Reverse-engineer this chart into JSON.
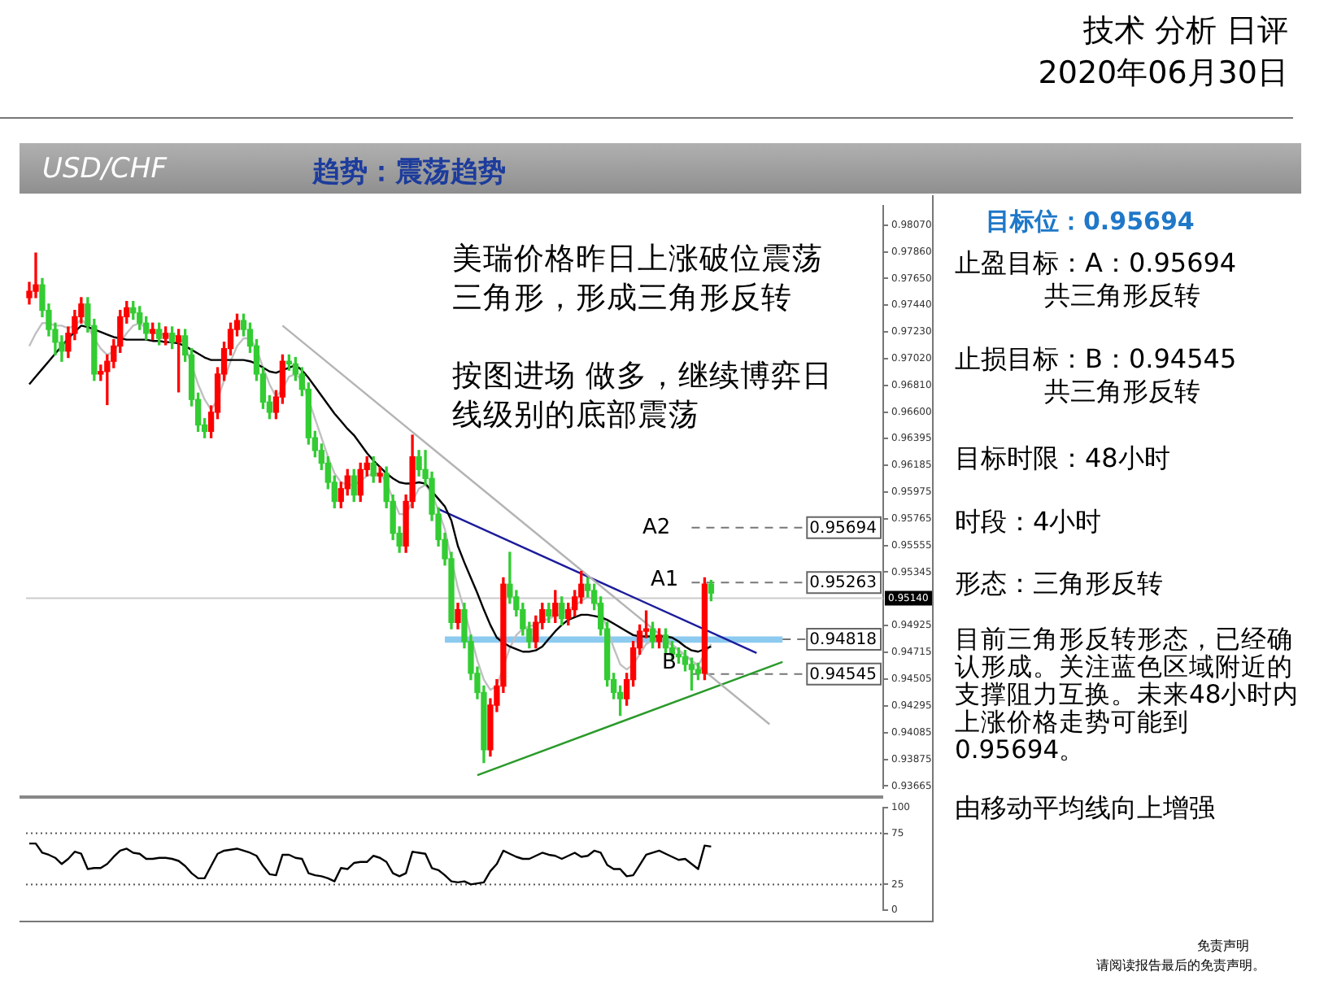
{
  "chart_data": [
    {
      "type": "candlestick",
      "title": "USD/CHF",
      "subtitle": "趋势：震荡趋势",
      "categories": [
        null,
        null,
        null,
        null,
        null,
        null,
        null,
        null,
        null,
        null,
        null,
        null,
        null,
        null,
        null,
        null,
        null,
        null,
        null,
        null,
        null,
        null,
        null,
        null,
        null,
        null,
        null,
        null,
        null,
        null,
        null,
        null,
        null,
        null,
        null,
        null,
        null,
        null,
        null,
        null,
        null,
        null,
        null,
        null,
        null,
        null,
        null,
        null,
        null,
        null,
        null,
        null,
        null,
        null,
        null,
        null,
        null,
        null,
        null,
        null,
        null,
        null,
        null,
        null,
        null,
        null,
        null,
        null,
        null,
        null,
        null,
        null,
        null,
        null,
        null,
        null,
        null,
        null,
        null,
        null,
        null,
        null,
        null,
        null,
        null,
        null,
        null,
        null,
        null,
        null,
        null,
        null,
        null,
        null,
        null,
        null,
        null,
        null,
        null,
        null,
        null,
        null,
        null,
        null,
        null,
        null,
        null,
        null,
        null,
        null,
        null,
        null,
        null,
        null,
        null,
        null,
        null,
        null,
        null,
        null,
        null,
        null,
        null,
        null,
        null,
        null,
        null,
        null,
        null,
        null,
        null,
        null
      ],
      "ohlc": [
        [
          0.975,
          0.9762,
          0.9745,
          0.9755
        ],
        [
          0.9755,
          0.9785,
          0.975,
          0.976
        ],
        [
          0.976,
          0.9765,
          0.9735,
          0.974
        ],
        [
          0.974,
          0.9745,
          0.972,
          0.9725
        ],
        [
          0.9725,
          0.973,
          0.9705,
          0.9715
        ],
        [
          0.9715,
          0.972,
          0.97,
          0.9708
        ],
        [
          0.9708,
          0.9727,
          0.9703,
          0.9722
        ],
        [
          0.9722,
          0.974,
          0.9717,
          0.9735
        ],
        [
          0.9735,
          0.975,
          0.973,
          0.9745
        ],
        [
          0.9745,
          0.975,
          0.9723,
          0.9728
        ],
        [
          0.9728,
          0.9733,
          0.9685,
          0.969
        ],
        [
          0.969,
          0.9697,
          0.9685,
          0.9692
        ],
        [
          0.9692,
          0.9705,
          0.9666,
          0.97
        ],
        [
          0.97,
          0.9717,
          0.9695,
          0.9712
        ],
        [
          0.9712,
          0.974,
          0.9707,
          0.9735
        ],
        [
          0.9735,
          0.9747,
          0.973,
          0.9742
        ],
        [
          0.9742,
          0.9747,
          0.9733,
          0.9738
        ],
        [
          0.9738,
          0.9743,
          0.9725,
          0.973
        ],
        [
          0.973,
          0.9735,
          0.9717,
          0.9722
        ],
        [
          0.9722,
          0.973,
          0.9717,
          0.9725
        ],
        [
          0.9725,
          0.973,
          0.9713,
          0.9718
        ],
        [
          0.9718,
          0.9727,
          0.9713,
          0.9722
        ],
        [
          0.9722,
          0.9727,
          0.971,
          0.9715
        ],
        [
          0.9715,
          0.9725,
          0.9676,
          0.972
        ],
        [
          0.972,
          0.9725,
          0.97,
          0.9705
        ],
        [
          0.9705,
          0.971,
          0.9665,
          0.967
        ],
        [
          0.967,
          0.9675,
          0.9645,
          0.965
        ],
        [
          0.965,
          0.9655,
          0.964,
          0.9645
        ],
        [
          0.9645,
          0.9665,
          0.964,
          0.966
        ],
        [
          0.966,
          0.9695,
          0.9655,
          0.969
        ],
        [
          0.969,
          0.9715,
          0.9685,
          0.971
        ],
        [
          0.971,
          0.973,
          0.9705,
          0.9725
        ],
        [
          0.9725,
          0.9737,
          0.972,
          0.9732
        ],
        [
          0.9732,
          0.9737,
          0.972,
          0.9725
        ],
        [
          0.9725,
          0.973,
          0.9707,
          0.9712
        ],
        [
          0.9712,
          0.9717,
          0.9685,
          0.969
        ],
        [
          0.969,
          0.9695,
          0.9663,
          0.9668
        ],
        [
          0.9668,
          0.9673,
          0.9655,
          0.966
        ],
        [
          0.966,
          0.9677,
          0.9655,
          0.9672
        ],
        [
          0.9672,
          0.9705,
          0.9667,
          0.97
        ],
        [
          0.97,
          0.9705,
          0.9693,
          0.9698
        ],
        [
          0.9698,
          0.9703,
          0.9685,
          0.969
        ],
        [
          0.969,
          0.9695,
          0.9673,
          0.9678
        ],
        [
          0.9678,
          0.9683,
          0.9635,
          0.964
        ],
        [
          0.964,
          0.9645,
          0.9625,
          0.963
        ],
        [
          0.963,
          0.9635,
          0.9615,
          0.962
        ],
        [
          0.962,
          0.9625,
          0.96,
          0.9605
        ],
        [
          0.9605,
          0.961,
          0.9585,
          0.959
        ],
        [
          0.959,
          0.9605,
          0.9585,
          0.96
        ],
        [
          0.96,
          0.9615,
          0.9595,
          0.961
        ],
        [
          0.961,
          0.9615,
          0.959,
          0.9595
        ],
        [
          0.9595,
          0.962,
          0.959,
          0.9615
        ],
        [
          0.9615,
          0.9625,
          0.961,
          0.962
        ],
        [
          0.962,
          0.9625,
          0.9605,
          0.961
        ],
        [
          0.961,
          0.9617,
          0.9605,
          0.9612
        ],
        [
          0.9612,
          0.9617,
          0.9585,
          0.959
        ],
        [
          0.959,
          0.9595,
          0.956,
          0.9565
        ],
        [
          0.9565,
          0.957,
          0.955,
          0.9555
        ],
        [
          0.9555,
          0.9595,
          0.955,
          0.959
        ],
        [
          0.959,
          0.9642,
          0.9585,
          0.9625
        ],
        [
          0.9625,
          0.963,
          0.961,
          0.9615
        ],
        [
          0.9615,
          0.963,
          0.9603,
          0.9608
        ],
        [
          0.9608,
          0.9613,
          0.9575,
          0.958
        ],
        [
          0.958,
          0.9585,
          0.9555,
          0.956
        ],
        [
          0.956,
          0.9565,
          0.954,
          0.9545
        ],
        [
          0.9545,
          0.955,
          0.949,
          0.9495
        ],
        [
          0.9495,
          0.951,
          0.949,
          0.9505
        ],
        [
          0.9505,
          0.951,
          0.9475,
          0.948
        ],
        [
          0.948,
          0.9485,
          0.945,
          0.9455
        ],
        [
          0.9455,
          0.946,
          0.9435,
          0.944
        ],
        [
          0.944,
          0.9445,
          0.9385,
          0.9395
        ],
        [
          0.9395,
          0.9435,
          0.939,
          0.943
        ],
        [
          0.943,
          0.945,
          0.9425,
          0.9445
        ],
        [
          0.9445,
          0.953,
          0.944,
          0.9525
        ],
        [
          0.9525,
          0.955,
          0.951,
          0.9515
        ],
        [
          0.9515,
          0.952,
          0.95,
          0.9505
        ],
        [
          0.9505,
          0.951,
          0.9485,
          0.949
        ],
        [
          0.949,
          0.9495,
          0.9475,
          0.948
        ],
        [
          0.948,
          0.95,
          0.9475,
          0.9495
        ],
        [
          0.9495,
          0.951,
          0.949,
          0.9505
        ],
        [
          0.9505,
          0.951,
          0.9495,
          0.95
        ],
        [
          0.95,
          0.952,
          0.9495,
          0.951
        ],
        [
          0.951,
          0.9515,
          0.9493,
          0.9498
        ],
        [
          0.9498,
          0.951,
          0.9493,
          0.9505
        ],
        [
          0.9505,
          0.952,
          0.95,
          0.9515
        ],
        [
          0.9515,
          0.9535,
          0.951,
          0.9525
        ],
        [
          0.9525,
          0.953,
          0.9515,
          0.952
        ],
        [
          0.952,
          0.9525,
          0.9505,
          0.951
        ],
        [
          0.951,
          0.9515,
          0.9485,
          0.949
        ],
        [
          0.949,
          0.9495,
          0.9445,
          0.945
        ],
        [
          0.945,
          0.9455,
          0.9435,
          0.944
        ],
        [
          0.944,
          0.9445,
          0.9422,
          0.9435
        ],
        [
          0.9435,
          0.9455,
          0.943,
          0.945
        ],
        [
          0.945,
          0.948,
          0.9445,
          0.9475
        ],
        [
          0.9475,
          0.9493,
          0.947,
          0.9488
        ],
        [
          0.9488,
          0.9504,
          0.9483,
          0.949
        ],
        [
          0.949,
          0.9495,
          0.9475,
          0.948
        ],
        [
          0.948,
          0.949,
          0.9475,
          0.9485
        ],
        [
          0.9485,
          0.949,
          0.947,
          0.9475
        ],
        [
          0.9475,
          0.948,
          0.9465,
          0.947
        ],
        [
          0.947,
          0.9475,
          0.9463,
          0.9468
        ],
        [
          0.9468,
          0.9473,
          0.9457,
          0.9462
        ],
        [
          0.9462,
          0.9467,
          0.9442,
          0.9458
        ],
        [
          0.9458,
          0.9463,
          0.945,
          0.9455
        ],
        [
          0.9455,
          0.953,
          0.945,
          0.9525
        ],
        [
          0.9525,
          0.9528,
          0.9512,
          0.9518
        ],
        null,
        null,
        null,
        null,
        null,
        null,
        null,
        null,
        null,
        null,
        null,
        null,
        null,
        null,
        null,
        null,
        null,
        null,
        null,
        null,
        null,
        null,
        null,
        null,
        null,
        null
      ],
      "colors": [
        "#ff0000",
        "#ff0000",
        "#33cc33",
        "#33cc33",
        "#33cc33",
        "#33cc33",
        "#ff0000",
        "#ff0000",
        "#ff0000",
        "#33cc33",
        "#33cc33",
        "#ff0000",
        "#ff0000",
        "#ff0000",
        "#ff0000",
        "#ff0000",
        "#33cc33",
        "#33cc33",
        "#33cc33",
        "#ff0000",
        "#33cc33",
        "#ff0000",
        "#33cc33",
        "#ff0000",
        "#33cc33",
        "#33cc33",
        "#33cc33",
        "#33cc33",
        "#ff0000",
        "#ff0000",
        "#ff0000",
        "#ff0000",
        "#ff0000",
        "#33cc33",
        "#33cc33",
        "#33cc33",
        "#33cc33",
        "#33cc33",
        "#ff0000",
        "#ff0000",
        "#33cc33",
        "#33cc33",
        "#33cc33",
        "#33cc33",
        "#33cc33",
        "#33cc33",
        "#33cc33",
        "#33cc33",
        "#ff0000",
        "#ff0000",
        "#33cc33",
        "#ff0000",
        "#ff0000",
        "#33cc33",
        "#ff0000",
        "#33cc33",
        "#33cc33",
        "#33cc33",
        "#ff0000",
        "#ff0000",
        "#33cc33",
        "#33cc33",
        "#33cc33",
        "#33cc33",
        "#33cc33",
        "#33cc33",
        "#ff0000",
        "#33cc33",
        "#33cc33",
        "#33cc33",
        "#33cc33",
        "#ff0000",
        "#ff0000",
        "#ff0000",
        "#33cc33",
        "#33cc33",
        "#33cc33",
        "#33cc33",
        "#ff0000",
        "#ff0000",
        "#33cc33",
        "#ff0000",
        "#33cc33",
        "#ff0000",
        "#ff0000",
        "#ff0000",
        "#33cc33",
        "#33cc33",
        "#33cc33",
        "#33cc33",
        "#33cc33",
        "#33cc33",
        "#ff0000",
        "#ff0000",
        "#ff0000",
        "#ff0000",
        "#33cc33",
        "#ff0000",
        "#33cc33",
        "#33cc33",
        "#33cc33",
        "#33cc33",
        "#33cc33",
        "#33cc33",
        "#ff0000",
        "#33cc33",
        null,
        null,
        null,
        null,
        null,
        null,
        null,
        null,
        null,
        null,
        null,
        null,
        null,
        null,
        null,
        null,
        null,
        null,
        null,
        null,
        null,
        null,
        null,
        null,
        null,
        null
      ],
      "series": [
        {
          "type": "line",
          "color": "#000000",
          "values": [
            0.9682,
            0.9688,
            0.9694,
            0.97,
            0.9706,
            0.9712,
            0.9718,
            0.9723,
            0.9728,
            0.9727,
            0.9725,
            0.9723,
            0.9721,
            0.9719,
            0.9718,
            0.9717,
            0.9717,
            0.9717,
            0.9717,
            0.9716,
            0.9716,
            0.9715,
            0.9715,
            0.9714,
            0.9712,
            0.9709,
            0.9706,
            0.9703,
            0.9701,
            0.9701,
            0.9701,
            0.9701,
            0.9701,
            0.9701,
            0.97,
            0.9698,
            0.9695,
            0.9692,
            0.9691,
            0.9693,
            0.9695,
            0.9697,
            0.9693,
            0.9687,
            0.968,
            0.9673,
            0.9666,
            0.9659,
            0.9653,
            0.9647,
            0.9642,
            0.9635,
            0.9628,
            0.9622,
            0.9617,
            0.9612,
            0.9608,
            0.9605,
            0.9604,
            0.9604,
            0.9605,
            0.9604,
            0.9598,
            0.9592,
            0.9586,
            0.9575,
            0.9555,
            0.9542,
            0.953,
            0.9518,
            0.9505,
            0.9493,
            0.9483,
            0.9479,
            0.9476,
            0.9474,
            0.9472,
            0.9472,
            0.9473,
            0.9476,
            0.9482,
            0.9488,
            0.9493,
            0.9497,
            0.9499,
            0.9501,
            0.9501,
            0.95,
            0.9499,
            0.9497,
            0.9494,
            0.9491,
            0.9488,
            0.9485,
            0.9484,
            0.9484,
            0.9484,
            0.9484,
            0.9484,
            0.9483,
            0.948,
            0.9476,
            0.9473,
            0.9472,
            0.9474,
            0.9476,
            null,
            null,
            null,
            null,
            null,
            null,
            null,
            null,
            null,
            null,
            null,
            null,
            null,
            null,
            null,
            null,
            null,
            null,
            null,
            null,
            null,
            null,
            null,
            null,
            null,
            null
          ]
        },
        {
          "type": "line",
          "color": "#c0c0c0",
          "values": [
            0.9712,
            0.9722,
            0.973,
            0.973,
            0.9728,
            0.9728,
            0.9726,
            0.9728,
            0.9733,
            0.9728,
            0.9718,
            0.971,
            0.9705,
            0.9708,
            0.9715,
            0.9722,
            0.9728,
            0.973,
            0.9726,
            0.9722,
            0.9722,
            0.972,
            0.972,
            0.972,
            0.9712,
            null,
            0.9682,
            0.967,
            0.9662,
            0.967,
            0.9685,
            0.97,
            0.9712,
            0.9718,
            0.9718,
            0.971,
            0.9695,
            0.9682,
            0.9672,
            0.9678,
            0.9688,
            0.969,
            0.9685,
            0.967,
            0.9655,
            0.964,
            0.9625,
            0.9612,
            0.9605,
            0.9603,
            0.9603,
            0.9606,
            0.961,
            0.9612,
            0.9612,
            0.9605,
            0.9592,
            0.958,
            0.958,
            0.959,
            0.96,
            0.9603,
            0.9596,
            0.9583,
            0.9568,
            null,
            0.9522,
            0.9505,
            0.9485,
            0.9465,
            0.945,
            0.9442,
            0.9445,
            null,
            0.9475,
            0.9485,
            0.949,
            0.9492,
            0.9493,
            0.9496,
            0.9498,
            0.95,
            0.9502,
            0.9505,
            0.9508,
            0.9512,
            0.9515,
            0.9513,
            0.9505,
            0.949,
            0.9475,
            0.9462,
            0.9458,
            0.9462,
            0.947,
            0.9478,
            0.9481,
            0.9482,
            0.948,
            0.9477,
            0.9473,
            0.9469,
            0.9465,
            0.9461,
            0.947,
            0.9478,
            null,
            null,
            null,
            null,
            null,
            null,
            null,
            null,
            null,
            null,
            null,
            null,
            null,
            null,
            null,
            null,
            null,
            null,
            null,
            null,
            null,
            null,
            null,
            null,
            null,
            null
          ]
        },
        {
          "type": "line",
          "color": "#b4b4b4",
          "values": [
            null,
            null,
            null,
            null,
            null,
            null,
            null,
            null,
            null,
            null,
            null,
            null,
            null,
            null,
            null,
            null,
            null,
            null,
            null,
            null,
            null,
            null,
            null,
            null,
            null,
            null,
            null,
            null,
            null,
            null,
            null,
            null,
            null,
            null,
            null,
            null,
            null,
            null,
            null,
            0.9728,
            null,
            null,
            null,
            null,
            null,
            null,
            null,
            null,
            null,
            null,
            null,
            null,
            null,
            null,
            null,
            null,
            null,
            null,
            null,
            null,
            null,
            null,
            null,
            null,
            null,
            null,
            null,
            null,
            null,
            null,
            null,
            null,
            null,
            null,
            null,
            null,
            null,
            null,
            null,
            null,
            null,
            null,
            null,
            null,
            null,
            null,
            null,
            null,
            null,
            null,
            null,
            null,
            null,
            null,
            null,
            null,
            null,
            null,
            null,
            null,
            null,
            null,
            null,
            null,
            null,
            null,
            null,
            null,
            null,
            null,
            null,
            null,
            null,
            null,
            0.9415,
            null,
            null,
            null,
            null,
            null,
            null,
            null,
            null,
            null,
            null,
            null,
            null,
            null,
            null,
            null,
            null,
            null
          ]
        },
        {
          "type": "line",
          "color": "#1c1c9c",
          "values": [
            null,
            null,
            null,
            null,
            null,
            null,
            null,
            null,
            null,
            null,
            null,
            null,
            null,
            null,
            null,
            null,
            null,
            null,
            null,
            null,
            null,
            null,
            null,
            null,
            null,
            null,
            null,
            null,
            null,
            null,
            null,
            null,
            null,
            null,
            null,
            null,
            null,
            null,
            null,
            null,
            null,
            null,
            null,
            null,
            null,
            null,
            null,
            null,
            null,
            null,
            null,
            null,
            null,
            null,
            null,
            null,
            null,
            null,
            null,
            null,
            null,
            null,
            null,
            0.9584,
            null,
            null,
            null,
            null,
            null,
            null,
            null,
            null,
            null,
            null,
            null,
            null,
            null,
            null,
            null,
            null,
            null,
            null,
            null,
            null,
            null,
            null,
            null,
            null,
            null,
            null,
            null,
            null,
            null,
            null,
            null,
            null,
            null,
            null,
            null,
            null,
            null,
            null,
            null,
            null,
            null,
            null,
            null,
            null,
            null,
            null,
            null,
            null,
            0.9471,
            null,
            null,
            null,
            null,
            null,
            null,
            null,
            null,
            null,
            null,
            null,
            null,
            null,
            null,
            null,
            null,
            null,
            null,
            null
          ]
        },
        {
          "type": "line",
          "color": "#2a9a2a",
          "values": [
            null,
            null,
            null,
            null,
            null,
            null,
            null,
            null,
            null,
            null,
            null,
            null,
            null,
            null,
            null,
            null,
            null,
            null,
            null,
            null,
            null,
            null,
            null,
            null,
            null,
            null,
            null,
            null,
            null,
            null,
            null,
            null,
            null,
            null,
            null,
            null,
            null,
            null,
            null,
            null,
            null,
            null,
            null,
            null,
            null,
            null,
            null,
            null,
            null,
            null,
            null,
            null,
            null,
            null,
            null,
            null,
            null,
            null,
            null,
            null,
            null,
            null,
            null,
            null,
            null,
            null,
            null,
            null,
            null,
            0.9375,
            null,
            null,
            null,
            null,
            null,
            null,
            null,
            null,
            null,
            null,
            null,
            null,
            null,
            null,
            null,
            null,
            null,
            null,
            null,
            null,
            null,
            null,
            null,
            null,
            null,
            null,
            null,
            null,
            null,
            null,
            null,
            null,
            null,
            null,
            null,
            null,
            null,
            null,
            null,
            null,
            null,
            null,
            null,
            null,
            null,
            null,
            0.9464,
            null,
            null,
            null,
            null,
            null,
            null,
            null,
            null,
            null,
            null,
            null,
            null,
            null,
            null,
            null
          ]
        }
      ],
      "ylim": [
        0.9365,
        0.9822
      ],
      "yticks": [
        {
          "value": 0.9807,
          "label": "0.98070"
        },
        {
          "value": 0.9786,
          "label": "0.97860"
        },
        {
          "value": 0.9765,
          "label": "0.97650"
        },
        {
          "value": 0.9744,
          "label": "0.97440"
        },
        {
          "value": 0.9723,
          "label": "0.97230"
        },
        {
          "value": 0.9702,
          "label": "0.97020"
        },
        {
          "value": 0.9681,
          "label": "0.96810"
        },
        {
          "value": 0.966,
          "label": "0.96600"
        },
        {
          "value": 0.96395,
          "label": "0.96395"
        },
        {
          "value": 0.96185,
          "label": "0.96185"
        },
        {
          "value": 0.95975,
          "label": "0.95975"
        },
        {
          "value": 0.95765,
          "label": "0.95765"
        },
        {
          "value": 0.95555,
          "label": "0.95555"
        },
        {
          "value": 0.95345,
          "label": "0.95345"
        },
        {
          "value": 0.94925,
          "label": "0.94925"
        },
        {
          "value": 0.94715,
          "label": "0.94715"
        },
        {
          "value": 0.94505,
          "label": "0.94505"
        },
        {
          "value": 0.94295,
          "label": "0.94295"
        },
        {
          "value": 0.94085,
          "label": "0.94085"
        },
        {
          "value": 0.93875,
          "label": "0.93875"
        },
        {
          "value": 0.93665,
          "label": "0.93665"
        }
      ],
      "tick_labels": "y",
      "grid": false,
      "legend": false,
      "marker": "none",
      "ref_lines": [
        {
          "axis": "y",
          "value": 0.9514,
          "label": "0.95140",
          "line_style": "solid",
          "color": "#cccccc"
        },
        {
          "axis": "y",
          "value": 0.95694,
          "label": "0.95694",
          "line_style": "dashed"
        },
        {
          "axis": "y",
          "value": 0.95263,
          "label": "0.95263",
          "line_style": "dashed"
        },
        {
          "axis": "y",
          "value": 0.94818,
          "label": "0.94818",
          "line_style": "dashed"
        },
        {
          "axis": "y",
          "value": 0.94545,
          "label": "0.94545",
          "line_style": "dashed"
        }
      ],
      "bands": [
        {
          "axis": "y",
          "from": 0.9479,
          "to": 0.9484,
          "color": "#8ccaf0"
        }
      ],
      "annotations": [
        "技术 分析 日评",
        "2020年06月30日",
        "美瑞价格昨日上涨破位震荡三角形，形成三角形反转",
        "按图进场 做多，继续博弈日线级别的底部震荡",
        "目标位：0.95694",
        "止盈目标：A：0.95694",
        "共三角形反转",
        "止损目标：B：0.94545",
        "共三角形反转",
        "目标时限：48小时",
        "时段：4小时",
        "形态：三角形反转",
        "目前三角形反转形态，已经确认形成。关注蓝色区域附近的支撑阻力互换。未来48小时内上涨价格走势可能到0.95694。",
        "由移动平均线向上增强",
        "免责声明",
        "请阅读报告最后的免责声明。",
        "A2",
        "A1",
        "B"
      ]
    },
    {
      "type": "line",
      "categories": [
        null,
        null,
        null,
        null,
        null,
        null,
        null,
        null,
        null,
        null,
        null,
        null,
        null,
        null,
        null,
        null,
        null,
        null,
        null,
        null,
        null,
        null,
        null,
        null,
        null,
        null,
        null,
        null,
        null,
        null,
        null,
        null,
        null,
        null,
        null,
        null,
        null,
        null,
        null,
        null,
        null,
        null,
        null,
        null,
        null,
        null,
        null,
        null,
        null,
        null,
        null,
        null,
        null,
        null,
        null,
        null,
        null,
        null,
        null,
        null,
        null,
        null,
        null,
        null,
        null,
        null,
        null,
        null,
        null,
        null,
        null,
        null,
        null,
        null,
        null,
        null,
        null,
        null,
        null,
        null,
        null,
        null,
        null,
        null,
        null,
        null,
        null,
        null,
        null,
        null,
        null,
        null,
        null,
        null,
        null,
        null,
        null,
        null,
        null,
        null,
        null,
        null,
        null,
        null,
        null,
        null,
        null,
        null,
        null,
        null,
        null,
        null,
        null,
        null,
        null,
        null,
        null,
        null,
        null,
        null,
        null,
        null,
        null,
        null,
        null,
        null,
        null,
        null,
        null,
        null,
        null,
        null
      ],
      "series": [
        {
          "color": "#000000",
          "values": [
            65,
            65,
            56,
            54,
            51,
            45,
            50,
            57,
            55,
            40,
            41,
            41,
            45,
            52,
            58,
            60,
            56,
            55,
            50,
            50,
            51,
            51,
            50,
            48,
            43,
            36,
            31,
            31,
            43,
            55,
            58,
            59,
            60,
            58,
            56,
            53,
            43,
            35,
            34,
            54,
            54,
            51,
            50,
            36,
            34,
            33,
            31,
            28,
            41,
            40,
            46,
            47,
            47,
            53,
            51,
            47,
            36,
            33,
            36,
            57,
            56,
            55,
            41,
            39,
            34,
            28,
            27,
            28,
            25,
            26,
            27,
            38,
            45,
            58,
            55,
            52,
            50,
            50,
            53,
            56,
            54,
            53,
            50,
            53,
            56,
            52,
            53,
            58,
            56,
            44,
            40,
            40,
            33,
            34,
            44,
            54,
            56,
            58,
            55,
            52,
            49,
            50,
            45,
            40,
            63,
            62,
            null,
            null,
            null,
            null,
            null,
            null,
            null,
            null,
            null,
            null,
            null,
            null,
            null,
            null,
            null,
            null,
            null,
            null,
            null,
            null,
            null,
            null,
            null,
            null,
            null,
            null
          ]
        }
      ],
      "ylim": [
        0,
        100
      ],
      "yticks": [
        0,
        25,
        75,
        100
      ],
      "tick_labels": "y",
      "grid": false,
      "legend": false,
      "marker": "none",
      "ref_lines": [
        {
          "axis": "y",
          "value": 75,
          "line_style": "dotted"
        },
        {
          "axis": "y",
          "value": 25,
          "line_style": "dotted"
        }
      ]
    }
  ]
}
